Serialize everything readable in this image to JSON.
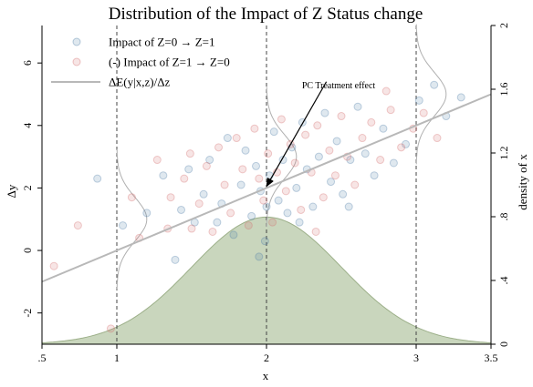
{
  "chart_data": {
    "type": "scatter",
    "title": "Distribution of the Impact of Z Status change",
    "xlabel": "x",
    "ylabel": "Δy",
    "y2label": "density of x",
    "xlim": [
      0.5,
      3.5
    ],
    "ylim": [
      -3.0,
      7.2
    ],
    "y2lim": [
      0,
      2.0
    ],
    "xticks": [
      {
        "value": 0.5,
        "label": ".5"
      },
      {
        "value": 1,
        "label": "1"
      },
      {
        "value": 2,
        "label": "2"
      },
      {
        "value": 3,
        "label": "3"
      },
      {
        "value": 3.5,
        "label": "3.5"
      }
    ],
    "yticks": [
      {
        "value": -2,
        "label": "-2"
      },
      {
        "value": 0,
        "label": "0"
      },
      {
        "value": 2,
        "label": "2"
      },
      {
        "value": 4,
        "label": "4"
      },
      {
        "value": 6,
        "label": "6"
      }
    ],
    "y2ticks": [
      {
        "value": 0,
        "label": "0"
      },
      {
        "value": 0.4,
        "label": ".4"
      },
      {
        "value": 0.8,
        "label": ".8"
      },
      {
        "value": 1.2,
        "label": "1.2"
      },
      {
        "value": 1.6,
        "label": "1.6"
      },
      {
        "value": 2.0,
        "label": "2"
      }
    ],
    "grid": false,
    "legend_position": "top-left",
    "colors": {
      "impact_0_to_1": "#4f7fa8",
      "impact_1_to_0": "#d46d6d",
      "effect_line": "#b8b8b8",
      "density_fill": "#c9d6bd",
      "density_stroke": "#9db08a",
      "conditional_density": "#b0b0b0",
      "vline": "#444444"
    },
    "series": [
      {
        "name": "Impact of Z=0 → Z=1",
        "type": "scatter",
        "points": [
          [
            0.87,
            2.3
          ],
          [
            1.04,
            0.8
          ],
          [
            1.2,
            1.2
          ],
          [
            1.31,
            2.4
          ],
          [
            1.43,
            1.3
          ],
          [
            1.52,
            0.9
          ],
          [
            1.58,
            1.8
          ],
          [
            1.62,
            2.9
          ],
          [
            1.7,
            1.5
          ],
          [
            1.74,
            3.6
          ],
          [
            1.78,
            0.5
          ],
          [
            1.83,
            2.1
          ],
          [
            1.86,
            3.2
          ],
          [
            1.9,
            1.1
          ],
          [
            1.93,
            2.7
          ],
          [
            1.96,
            1.9
          ],
          [
            1.99,
            0.3
          ],
          [
            2.02,
            2.4
          ],
          [
            2.05,
            3.8
          ],
          [
            2.08,
            1.6
          ],
          [
            2.11,
            2.9
          ],
          [
            2.14,
            1.2
          ],
          [
            2.17,
            3.3
          ],
          [
            2.2,
            2.0
          ],
          [
            2.24,
            4.1
          ],
          [
            2.27,
            2.6
          ],
          [
            2.31,
            1.4
          ],
          [
            2.35,
            3.0
          ],
          [
            2.39,
            4.4
          ],
          [
            2.43,
            2.2
          ],
          [
            2.47,
            3.5
          ],
          [
            2.51,
            1.8
          ],
          [
            2.56,
            2.9
          ],
          [
            2.61,
            4.6
          ],
          [
            2.66,
            3.1
          ],
          [
            2.72,
            2.4
          ],
          [
            2.78,
            3.9
          ],
          [
            2.85,
            2.8
          ],
          [
            2.93,
            3.4
          ],
          [
            3.02,
            4.8
          ],
          [
            3.12,
            5.3
          ],
          [
            3.2,
            4.3
          ],
          [
            3.3,
            4.9
          ],
          [
            1.67,
            0.9
          ],
          [
            1.95,
            -0.2
          ],
          [
            2.22,
            0.9
          ],
          [
            1.39,
            -0.3
          ],
          [
            1.48,
            2.6
          ],
          [
            2.55,
            1.4
          ],
          [
            2.0,
            1.4
          ]
        ]
      },
      {
        "name": "(-) Impact of Z=1 → Z=0",
        "type": "scatter",
        "points": [
          [
            0.58,
            -0.5
          ],
          [
            0.74,
            0.8
          ],
          [
            0.96,
            -2.5
          ],
          [
            1.1,
            1.7
          ],
          [
            1.15,
            0.4
          ],
          [
            1.27,
            2.9
          ],
          [
            1.34,
            0.7
          ],
          [
            1.45,
            2.3
          ],
          [
            1.49,
            3.1
          ],
          [
            1.55,
            1.5
          ],
          [
            1.6,
            2.7
          ],
          [
            1.64,
            0.6
          ],
          [
            1.68,
            3.3
          ],
          [
            1.72,
            2.1
          ],
          [
            1.76,
            1.2
          ],
          [
            1.8,
            3.6
          ],
          [
            1.84,
            2.6
          ],
          [
            1.88,
            0.8
          ],
          [
            1.92,
            3.9
          ],
          [
            1.95,
            2.3
          ],
          [
            1.98,
            1.6
          ],
          [
            2.01,
            3.1
          ],
          [
            2.04,
            0.9
          ],
          [
            2.07,
            2.5
          ],
          [
            2.1,
            4.2
          ],
          [
            2.13,
            1.9
          ],
          [
            2.16,
            3.4
          ],
          [
            2.19,
            2.8
          ],
          [
            2.23,
            1.3
          ],
          [
            2.26,
            3.7
          ],
          [
            2.3,
            2.5
          ],
          [
            2.34,
            4.0
          ],
          [
            2.38,
            1.7
          ],
          [
            2.42,
            3.2
          ],
          [
            2.46,
            2.4
          ],
          [
            2.5,
            4.3
          ],
          [
            2.54,
            3.0
          ],
          [
            2.59,
            2.1
          ],
          [
            2.64,
            3.6
          ],
          [
            2.7,
            4.1
          ],
          [
            2.76,
            2.9
          ],
          [
            2.83,
            4.5
          ],
          [
            2.9,
            3.3
          ],
          [
            2.98,
            3.9
          ],
          [
            3.05,
            4.4
          ],
          [
            3.14,
            3.6
          ],
          [
            1.36,
            1.7
          ],
          [
            1.5,
            0.7
          ],
          [
            2.33,
            0.6
          ],
          [
            2.8,
            5.1
          ]
        ]
      },
      {
        "name": "ΔE(y|x,z)/Δz",
        "type": "line",
        "points": [
          [
            0.5,
            -1.0
          ],
          [
            3.5,
            5.0
          ]
        ]
      }
    ],
    "density_of_x": {
      "type": "area",
      "axis": "y2",
      "mean": 2.0,
      "sd": 0.5,
      "x_range": [
        0.5,
        3.5
      ]
    },
    "conditional_densities": [
      {
        "at_x": 1,
        "center_y": 1.0,
        "spread": 1.4,
        "max_width": 0.2
      },
      {
        "at_x": 2,
        "center_y": 3.0,
        "spread": 1.4,
        "max_width": 0.2
      },
      {
        "at_x": 3,
        "center_y": 5.0,
        "spread": 1.4,
        "max_width": 0.2
      }
    ],
    "vlines": [
      1,
      2,
      3
    ],
    "annotations": [
      {
        "text": "PC Treatment effect",
        "arrow_from": [
          2.4,
          5.4
        ],
        "arrow_to": [
          2.0,
          2.05
        ]
      }
    ]
  }
}
